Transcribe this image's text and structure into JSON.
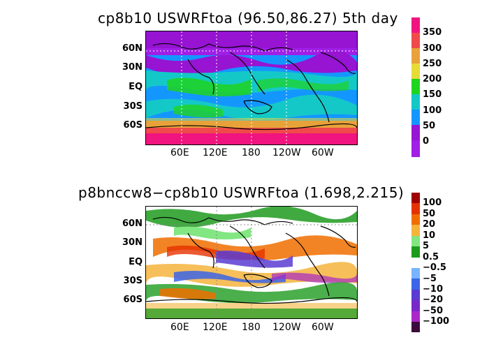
{
  "panels": [
    {
      "title": "cp8b10 USWRFtoa (96.50,86.27) 5th day",
      "lat_labels": [
        "60N",
        "30N",
        "EQ",
        "30S",
        "60S"
      ],
      "lon_labels": [
        "60E",
        "120E",
        "180",
        "120W",
        "60W"
      ],
      "colorbar": {
        "labels": [
          "350",
          "300",
          "250",
          "200",
          "150",
          "100",
          "50",
          "0"
        ],
        "colors": [
          "#f0147f",
          "#f04a4a",
          "#e8a23a",
          "#e6dc36",
          "#1fd41f",
          "#14c8c8",
          "#1496ff",
          "#9614d2",
          "#a01ee6"
        ]
      }
    },
    {
      "title": "p8bnccw8−cp8b10 USWRFtoa (1.698,2.215)",
      "lat_labels": [
        "60N",
        "30N",
        "EQ",
        "30S",
        "60S"
      ],
      "lon_labels": [
        "60E",
        "120E",
        "180",
        "120W",
        "60W"
      ],
      "colorbar": {
        "labels": [
          "100",
          "50",
          "20",
          "10",
          "5",
          "0.5",
          "−0.5",
          "−5",
          "−10",
          "−20",
          "−50",
          "−100"
        ],
        "colors": [
          "#a00000",
          "#e63200",
          "#f06e00",
          "#f5b43c",
          "#82e682",
          "#1e9b1e",
          "#ffffff",
          "#78b4ff",
          "#3c64e6",
          "#5a3cd2",
          "#7828c8",
          "#aa28c8",
          "#3c0a3c"
        ]
      }
    }
  ]
}
